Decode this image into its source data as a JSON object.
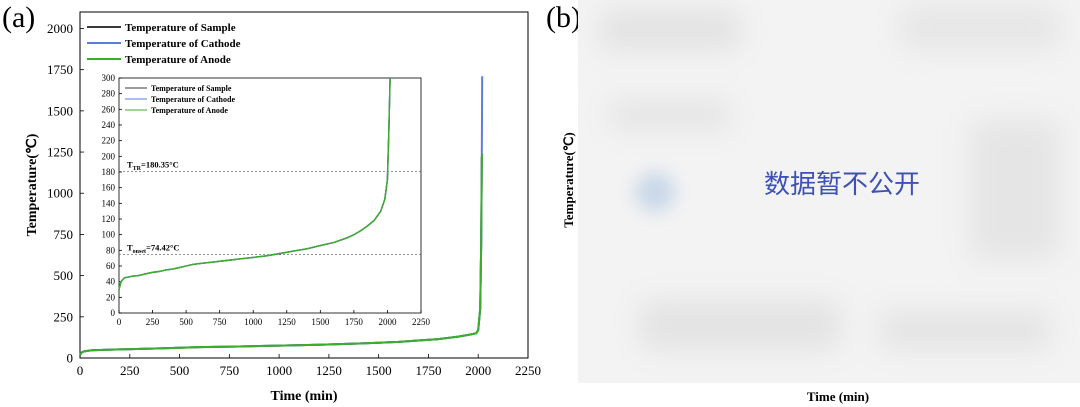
{
  "panels": {
    "a_label": "(a)",
    "b_label": "(b)"
  },
  "colors": {
    "sample": "#3a3a3a",
    "cathode": "#5b7fd6",
    "anode": "#3cac2c",
    "placeholder_text": "#3f51b5"
  },
  "chart_data": [
    {
      "type": "line",
      "panel": "a-main",
      "xlabel": "Time (min)",
      "ylabel": "Temperature(℃)",
      "xlim": [
        0,
        2250
      ],
      "ylim": [
        0,
        2100
      ],
      "x_ticks": [
        0,
        250,
        500,
        750,
        1000,
        1250,
        1500,
        1750,
        2000,
        2250
      ],
      "y_ticks": [
        0,
        250,
        500,
        750,
        1000,
        1250,
        1500,
        1750,
        2000
      ],
      "legend_position": "top-left",
      "series": [
        {
          "name": "Temperature of Sample",
          "color": "#3a3a3a",
          "x": [
            0,
            10,
            20,
            60,
            200,
            400,
            600,
            800,
            1000,
            1200,
            1400,
            1600,
            1700,
            1800,
            1900,
            1950,
            1990,
            2000,
            2010,
            2015,
            2018
          ],
          "y": [
            20,
            35,
            40,
            47,
            52,
            58,
            66,
            70,
            75,
            80,
            88,
            98,
            106,
            115,
            130,
            140,
            150,
            170,
            300,
            700,
            1220
          ]
        },
        {
          "name": "Temperature of Cathode",
          "color": "#5b7fd6",
          "x": [
            0,
            10,
            20,
            60,
            200,
            400,
            600,
            800,
            1000,
            1200,
            1400,
            1600,
            1700,
            1800,
            1900,
            1950,
            1990,
            2000,
            2010,
            2015,
            2018,
            2020
          ],
          "y": [
            20,
            35,
            40,
            47,
            52,
            58,
            66,
            70,
            75,
            80,
            88,
            98,
            106,
            115,
            130,
            140,
            150,
            170,
            300,
            700,
            1220,
            1710
          ]
        },
        {
          "name": "Temperature of Anode",
          "color": "#3cac2c",
          "x": [
            0,
            10,
            20,
            60,
            200,
            400,
            600,
            800,
            1000,
            1200,
            1400,
            1600,
            1700,
            1800,
            1900,
            1950,
            1990,
            2000,
            2010,
            2015,
            2018,
            2020
          ],
          "y": [
            20,
            35,
            40,
            47,
            52,
            58,
            66,
            70,
            75,
            80,
            88,
            98,
            106,
            115,
            130,
            140,
            150,
            170,
            300,
            700,
            1220,
            1240
          ]
        }
      ]
    },
    {
      "type": "line",
      "panel": "a-inset",
      "xlim": [
        0,
        2250
      ],
      "ylim": [
        0,
        300
      ],
      "x_ticks": [
        0,
        250,
        500,
        750,
        1000,
        1250,
        1500,
        1750,
        2000,
        2250
      ],
      "y_ticks": [
        0,
        20,
        40,
        60,
        80,
        100,
        120,
        140,
        160,
        180,
        200,
        220,
        240,
        260,
        280,
        300
      ],
      "legend_position": "top-left",
      "reference_lines": [
        {
          "y": 180.35,
          "label_main": "T",
          "label_sub": "TR",
          "label_rest": "=180.35°C"
        },
        {
          "y": 74.42,
          "label_main": "T",
          "label_sub": "onset",
          "label_rest": "=74.42°C"
        }
      ],
      "series": [
        {
          "name": "Temperature of Sample",
          "color": "#3a3a3a",
          "x": [
            0,
            15,
            40,
            100,
            150,
            200,
            250,
            300,
            350,
            400,
            450,
            500,
            550,
            600,
            700,
            800,
            900,
            1000,
            1100,
            1200,
            1300,
            1400,
            1500,
            1600,
            1700,
            1750,
            1800,
            1850,
            1900,
            1950,
            1980,
            2000,
            2010,
            2020
          ],
          "y": [
            30,
            40,
            45,
            47,
            48,
            50,
            52,
            53,
            55,
            56,
            58,
            60,
            62,
            63,
            65,
            67,
            69,
            71,
            73,
            76,
            79,
            82,
            86,
            90,
            96,
            100,
            105,
            111,
            118,
            130,
            145,
            170,
            230,
            300
          ]
        },
        {
          "name": "Temperature of Cathode",
          "color": "#5b7fd6",
          "x": [
            0,
            15,
            40,
            100,
            150,
            200,
            250,
            300,
            350,
            400,
            450,
            500,
            550,
            600,
            700,
            800,
            900,
            1000,
            1100,
            1200,
            1300,
            1400,
            1500,
            1600,
            1700,
            1750,
            1800,
            1850,
            1900,
            1950,
            1980,
            2000,
            2010,
            2020
          ],
          "y": [
            30,
            40,
            45,
            47,
            48,
            50,
            52,
            53,
            55,
            56,
            58,
            60,
            62,
            63,
            65,
            67,
            69,
            71,
            73,
            76,
            79,
            82,
            86,
            90,
            96,
            100,
            105,
            111,
            118,
            130,
            145,
            170,
            230,
            300
          ]
        },
        {
          "name": "Temperature of Anode",
          "color": "#3cac2c",
          "x": [
            0,
            15,
            40,
            100,
            150,
            200,
            250,
            300,
            350,
            400,
            450,
            500,
            550,
            600,
            700,
            800,
            900,
            1000,
            1100,
            1200,
            1300,
            1400,
            1500,
            1600,
            1700,
            1750,
            1800,
            1850,
            1900,
            1950,
            1980,
            2000,
            2010,
            2020
          ],
          "y": [
            30,
            40,
            45,
            47,
            48,
            50,
            52,
            53,
            55,
            56,
            58,
            60,
            62,
            63,
            65,
            67,
            69,
            71,
            73,
            76,
            79,
            82,
            86,
            90,
            96,
            100,
            105,
            111,
            118,
            130,
            145,
            170,
            230,
            300
          ]
        }
      ]
    }
  ],
  "panel_b": {
    "ylabel": "Temperature(℃)",
    "xlabel": "Time (min)",
    "notice": "数据暂不公开"
  }
}
